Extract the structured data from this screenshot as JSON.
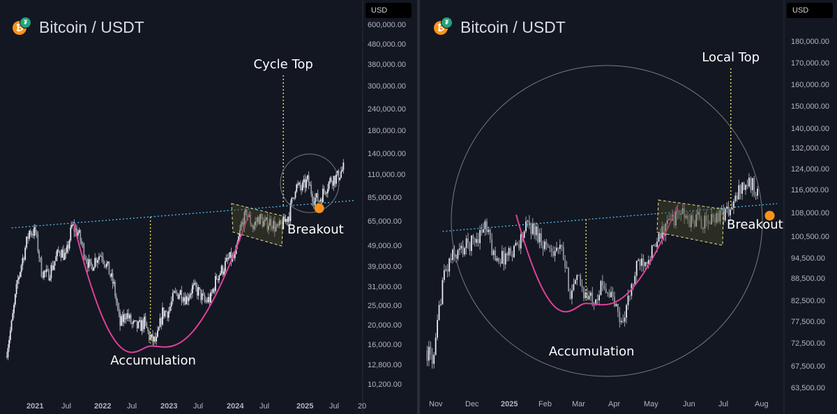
{
  "left": {
    "title": "Bitcoin / USDT",
    "currency": "USD",
    "price_axis": [
      "600,000.00",
      "480,000.00",
      "380,000.00",
      "300,000.00",
      "240,000.00",
      "180,000.00",
      "140,000.00",
      "110,000.00",
      "85,000.00",
      "65,000.00",
      "49,000.00",
      "39,000.00",
      "31,000.00",
      "25,000.00",
      "20,000.00",
      "16,000.00",
      "12,800.00",
      "10,200.00"
    ],
    "time_axis": [
      "2021",
      "Jul",
      "2022",
      "Jul",
      "2023",
      "Jul",
      "2024",
      "Jul",
      "2025",
      "Jul",
      "20"
    ],
    "annotations": {
      "top": "Cycle Top",
      "breakout": "Breakout",
      "bottom": "Accumulation"
    }
  },
  "right": {
    "title": "Bitcoin / USDT",
    "currency": "USD",
    "price_axis": [
      "180,000.00",
      "170,000.00",
      "160,000.00",
      "150,000.00",
      "140,000.00",
      "132,000.00",
      "124,000.00",
      "116,000.00",
      "108,000.00",
      "100,500.00",
      "94,500.00",
      "88,500.00",
      "82,500.00",
      "77,500.00",
      "72,500.00",
      "67,500.00",
      "63,500.00"
    ],
    "time_axis": [
      "Nov",
      "Dec",
      "2025",
      "Feb",
      "Mar",
      "Apr",
      "May",
      "Jun",
      "Jul",
      "Aug"
    ],
    "annotations": {
      "top": "Local Top",
      "breakout": "Breakout",
      "bottom": "Accumulation"
    }
  },
  "colors": {
    "background": "#131722",
    "candle": "#d1d4dc",
    "trendline": "#4fc3f7",
    "cup_curve": "#e0409a",
    "dotted_marker": "#f5e663",
    "breakout_dot": "#f7931a",
    "channel_fill": "#4a4a2a",
    "circle": "#787b86"
  },
  "chart_data": [
    {
      "type": "candlestick",
      "pair": "Bitcoin / USDT",
      "scale": "log",
      "x_range": [
        "2020-11",
        "2025-09"
      ],
      "y_range": [
        9000,
        650000
      ],
      "close_series": [
        [
          "2020-11",
          14000
        ],
        [
          "2020-12",
          20000
        ],
        [
          "2021-01",
          33000
        ],
        [
          "2021-02",
          45000
        ],
        [
          "2021-03",
          58000
        ],
        [
          "2021-04",
          57000
        ],
        [
          "2021-05",
          37000
        ],
        [
          "2021-06",
          35000
        ],
        [
          "2021-07",
          40000
        ],
        [
          "2021-08",
          47000
        ],
        [
          "2021-09",
          43000
        ],
        [
          "2021-10",
          61000
        ],
        [
          "2021-11",
          57000
        ],
        [
          "2021-12",
          46000
        ],
        [
          "2022-01",
          38000
        ],
        [
          "2022-02",
          43000
        ],
        [
          "2022-03",
          45000
        ],
        [
          "2022-04",
          38000
        ],
        [
          "2022-05",
          31000
        ],
        [
          "2022-06",
          20000
        ],
        [
          "2022-07",
          23000
        ],
        [
          "2022-08",
          20000
        ],
        [
          "2022-09",
          19500
        ],
        [
          "2022-10",
          20500
        ],
        [
          "2022-11",
          17000
        ],
        [
          "2022-12",
          16500
        ],
        [
          "2023-01",
          23000
        ],
        [
          "2023-02",
          23500
        ],
        [
          "2023-03",
          28000
        ],
        [
          "2023-04",
          29000
        ],
        [
          "2023-05",
          27000
        ],
        [
          "2023-06",
          30500
        ],
        [
          "2023-07",
          29200
        ],
        [
          "2023-08",
          26000
        ],
        [
          "2023-09",
          27000
        ],
        [
          "2023-10",
          34500
        ],
        [
          "2023-11",
          37700
        ],
        [
          "2023-12",
          42300
        ],
        [
          "2024-01",
          42500
        ],
        [
          "2024-02",
          61000
        ],
        [
          "2024-03",
          71000
        ],
        [
          "2024-04",
          60600
        ],
        [
          "2024-05",
          67500
        ],
        [
          "2024-06",
          62700
        ],
        [
          "2024-07",
          64600
        ],
        [
          "2024-08",
          59000
        ],
        [
          "2024-09",
          63300
        ],
        [
          "2024-10",
          70300
        ],
        [
          "2024-11",
          96400
        ],
        [
          "2024-12",
          93400
        ],
        [
          "2025-01",
          102400
        ],
        [
          "2025-02",
          84300
        ],
        [
          "2025-03",
          82500
        ],
        [
          "2025-04",
          94200
        ],
        [
          "2025-05",
          104600
        ],
        [
          "2025-06",
          107100
        ],
        [
          "2025-07",
          118000
        ]
      ],
      "trendline": [
        [
          "2020-12",
          60000
        ],
        [
          "2025-09",
          82000
        ]
      ],
      "markers": {
        "cycle_top_x": "2024-09",
        "accumulation_x": "2022-11",
        "breakout": [
          "2025-03",
          75000
        ]
      }
    },
    {
      "type": "candlestick",
      "pair": "Bitcoin / USDT",
      "scale": "log",
      "x_range": [
        "2024-10-29",
        "2025-08-14"
      ],
      "y_range": [
        62500,
        190000
      ],
      "close_series": [
        [
          "2024-10-29",
          71000
        ],
        [
          "2024-11-05",
          69000
        ],
        [
          "2024-11-12",
          88000
        ],
        [
          "2024-11-19",
          94000
        ],
        [
          "2024-11-26",
          96000
        ],
        [
          "2024-12-03",
          98000
        ],
        [
          "2024-12-10",
          100000
        ],
        [
          "2024-12-17",
          104000
        ],
        [
          "2024-12-24",
          95000
        ],
        [
          "2024-12-31",
          94000
        ],
        [
          "2025-01-07",
          96000
        ],
        [
          "2025-01-14",
          99000
        ],
        [
          "2025-01-21",
          104000
        ],
        [
          "2025-01-28",
          102000
        ],
        [
          "2025-02-04",
          98000
        ],
        [
          "2025-02-11",
          97000
        ],
        [
          "2025-02-18",
          96000
        ],
        [
          "2025-02-25",
          85000
        ],
        [
          "2025-03-04",
          88000
        ],
        [
          "2025-03-11",
          83000
        ],
        [
          "2025-03-18",
          84000
        ],
        [
          "2025-03-25",
          87000
        ],
        [
          "2025-04-01",
          83000
        ],
        [
          "2025-04-08",
          77000
        ],
        [
          "2025-04-15",
          84000
        ],
        [
          "2025-04-22",
          93000
        ],
        [
          "2025-04-29",
          94500
        ],
        [
          "2025-05-06",
          97000
        ],
        [
          "2025-05-13",
          103000
        ],
        [
          "2025-05-20",
          106000
        ],
        [
          "2025-05-27",
          108000
        ],
        [
          "2025-06-03",
          105000
        ],
        [
          "2025-06-10",
          106000
        ],
        [
          "2025-06-17",
          104000
        ],
        [
          "2025-06-24",
          107000
        ],
        [
          "2025-07-01",
          108000
        ],
        [
          "2025-07-08",
          109000
        ],
        [
          "2025-07-15",
          117000
        ],
        [
          "2025-07-22",
          118000
        ],
        [
          "2025-07-29",
          116000
        ]
      ],
      "trendline": [
        [
          "2024-11-12",
          102000
        ],
        [
          "2025-08-14",
          111000
        ]
      ],
      "markers": {
        "local_top_x": "2025-07-07",
        "accumulation_x": "2025-03-10",
        "breakout": [
          "2025-08-08",
          107000
        ]
      }
    }
  ]
}
